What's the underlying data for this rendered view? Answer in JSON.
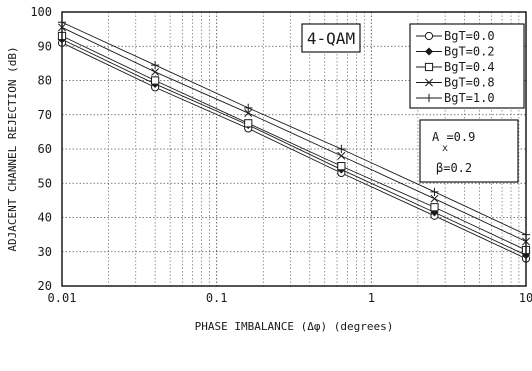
{
  "chart_data": {
    "type": "line",
    "xscale": "log",
    "xlim": [
      0.01,
      10
    ],
    "ylim": [
      20,
      100
    ],
    "grid": true,
    "xlabel": "PHASE IMBALANCE (Δφ) (degrees)",
    "ylabel": "ADJACENT CHANNEL REJECTION (dB)",
    "x_ticks": [
      "0.01",
      "0.1",
      "1",
      "10"
    ],
    "y_ticks": [
      "20",
      "30",
      "40",
      "50",
      "60",
      "70",
      "80",
      "90",
      "100"
    ],
    "annotation_box": "4-QAM",
    "params": {
      "ax": "A  =0.9",
      "ax_sub": "x",
      "beta": "β=0.2"
    },
    "legend_position": "top-right",
    "x": [
      0.01,
      0.04,
      0.16,
      0.64,
      2.56,
      10
    ],
    "series": [
      {
        "name": "BgT=0.0",
        "marker": "circle",
        "values": [
          91,
          78,
          66,
          53,
          40.5,
          28
        ]
      },
      {
        "name": "BgT=0.2",
        "marker": "diamond",
        "values": [
          92,
          79,
          67,
          54,
          41.5,
          29
        ]
      },
      {
        "name": "BgT=0.4",
        "marker": "square",
        "values": [
          93,
          80,
          67.5,
          55,
          43,
          30.5
        ]
      },
      {
        "name": "BgT=0.8",
        "marker": "x",
        "values": [
          95.5,
          82.5,
          70.5,
          58,
          45.5,
          33
        ]
      },
      {
        "name": "BgT=1.0",
        "marker": "plus",
        "values": [
          97,
          84.5,
          72,
          60,
          47.5,
          35
        ]
      }
    ]
  }
}
